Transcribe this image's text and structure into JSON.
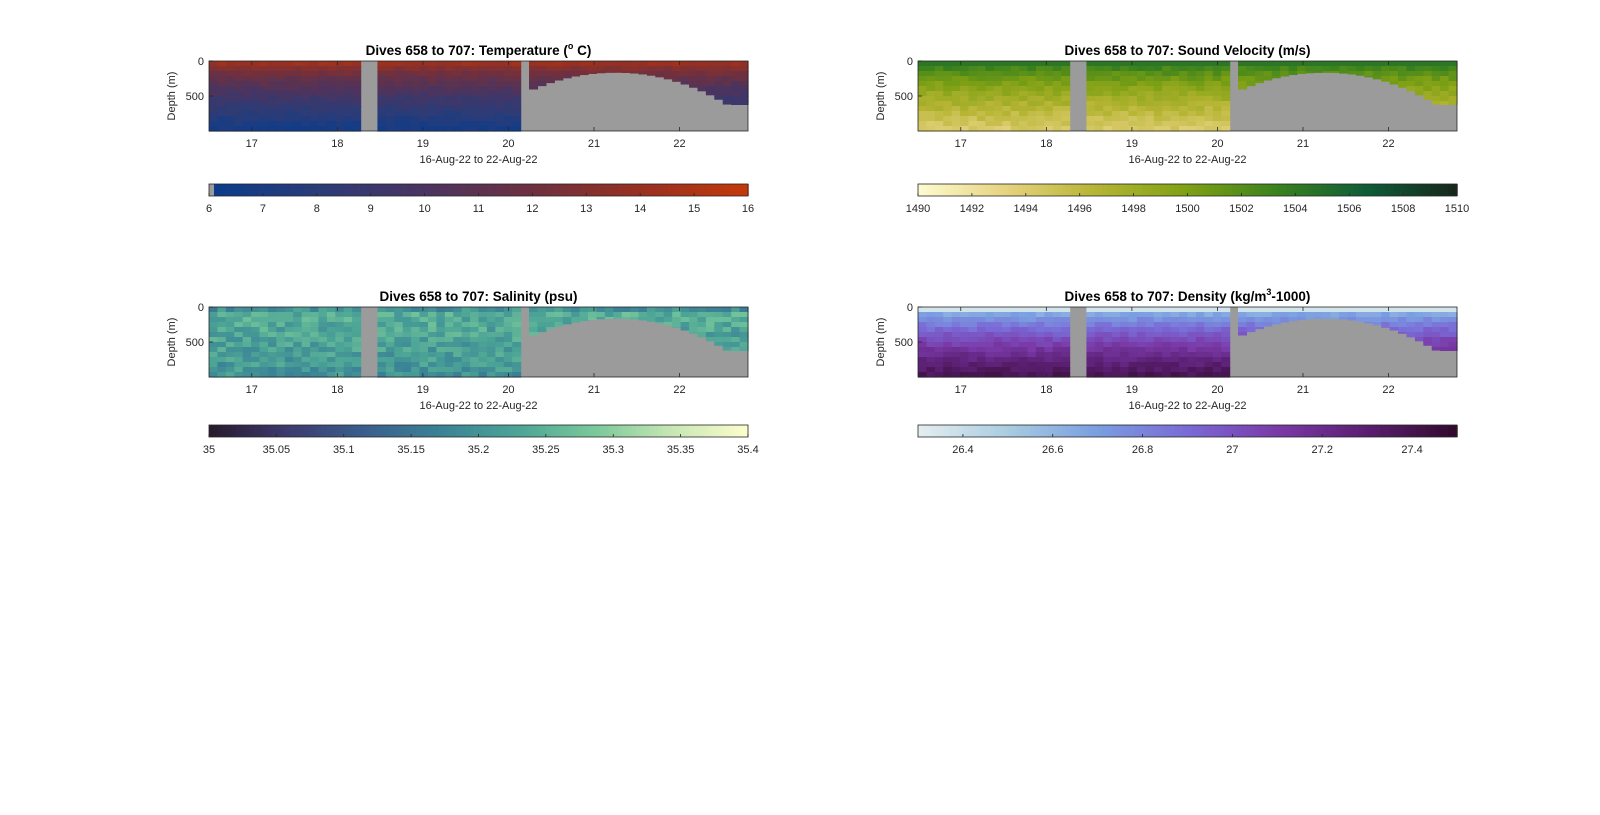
{
  "chart_data": [
    {
      "type": "heatmap",
      "title_main": "Dives 658 to 707: Temperature (",
      "title_sup": "o",
      "title_tail": " C)",
      "ylabel": "Depth (m)",
      "xlabel": "16-Aug-22 to 22-Aug-22",
      "x_ticks": [
        "17",
        "18",
        "19",
        "20",
        "21",
        "22"
      ],
      "y_ticks": [
        "0",
        "500"
      ],
      "xlim": [
        16.5,
        22.8
      ],
      "ylim": [
        0,
        1000
      ],
      "colorbar_ticks": [
        "6",
        "7",
        "8",
        "9",
        "10",
        "11",
        "12",
        "13",
        "14",
        "15",
        "16"
      ],
      "clim": [
        6,
        16
      ],
      "colormap": [
        "#0a3c8c",
        "#2a3c78",
        "#4a3460",
        "#6e3040",
        "#983020",
        "#c43a0a"
      ],
      "surface_value": 15.2,
      "bottom_value": 6.6,
      "gap_color": "#9b9b9b"
    },
    {
      "type": "heatmap",
      "title_main": "Dives 658 to 707: Sound Velocity (m/s)",
      "title_sup": "",
      "title_tail": "",
      "ylabel": "Depth (m)",
      "xlabel": "16-Aug-22 to 22-Aug-22",
      "x_ticks": [
        "17",
        "18",
        "19",
        "20",
        "21",
        "22"
      ],
      "y_ticks": [
        "0",
        "500"
      ],
      "xlim": [
        16.5,
        22.8
      ],
      "ylim": [
        0,
        1000
      ],
      "colorbar_ticks": [
        "1490",
        "1492",
        "1494",
        "1496",
        "1498",
        "1500",
        "1502",
        "1504",
        "1506",
        "1508",
        "1510"
      ],
      "clim": [
        1490,
        1510
      ],
      "colormap": [
        "#fdfbd0",
        "#e6d27e",
        "#b4b432",
        "#7ea014",
        "#3a821e",
        "#0e5c38",
        "#18261a"
      ],
      "surface_value": 1506,
      "bottom_value": 1494,
      "gap_color": "#9b9b9b"
    },
    {
      "type": "heatmap",
      "title_main": "Dives 658 to 707: Salinity (psu)",
      "title_sup": "",
      "title_tail": "",
      "ylabel": "Depth (m)",
      "xlabel": "16-Aug-22 to 22-Aug-22",
      "x_ticks": [
        "17",
        "18",
        "19",
        "20",
        "21",
        "22"
      ],
      "y_ticks": [
        "0",
        "500"
      ],
      "xlim": [
        16.5,
        22.8
      ],
      "ylim": [
        0,
        1000
      ],
      "colorbar_ticks": [
        "35",
        "35.05",
        "35.1",
        "35.15",
        "35.2",
        "35.25",
        "35.3",
        "35.35",
        "35.4"
      ],
      "clim": [
        35,
        35.4
      ],
      "colormap": [
        "#281a2c",
        "#3c3a6e",
        "#3a5e8c",
        "#3a8296",
        "#4ca496",
        "#7ac89a",
        "#c6e6b4",
        "#fdfdcc"
      ],
      "surface_value": 35.2,
      "bottom_value": 35.2,
      "gap_color": "#9b9b9b"
    },
    {
      "type": "heatmap",
      "title_main": "Dives 658 to 707: Density (kg/m",
      "title_sup": "3",
      "title_tail": "-1000)",
      "ylabel": "Depth (m)",
      "xlabel": "16-Aug-22 to 22-Aug-22",
      "x_ticks": [
        "17",
        "18",
        "19",
        "20",
        "21",
        "22"
      ],
      "y_ticks": [
        "0",
        "500"
      ],
      "xlim": [
        16.5,
        22.8
      ],
      "ylim": [
        0,
        1000
      ],
      "colorbar_ticks": [
        "26.4",
        "26.6",
        "26.8",
        "27",
        "27.2",
        "27.4"
      ],
      "clim": [
        26.3,
        27.5
      ],
      "colormap": [
        "#e4eef0",
        "#a8cce0",
        "#7a9ee0",
        "#7a6ad6",
        "#7a3aa8",
        "#5a1e70",
        "#300a2c"
      ],
      "surface_value": 26.4,
      "bottom_value": 27.4,
      "gap_color": "#9b9b9b"
    }
  ]
}
